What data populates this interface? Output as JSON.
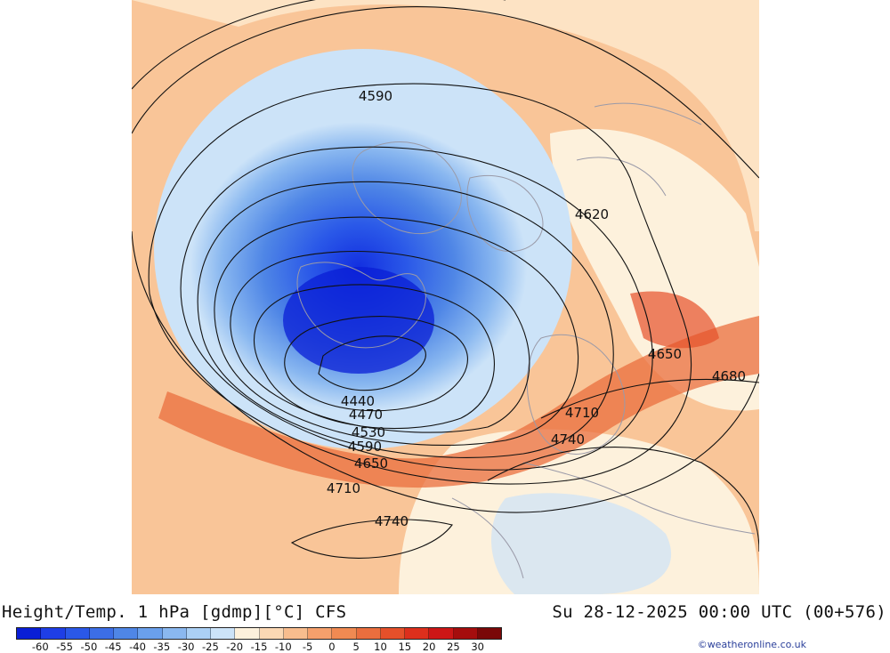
{
  "title": {
    "left": "Height/Temp. 1 hPa [gdmp][°C] CFS",
    "right": "Su 28-12-2025 00:00 UTC (00+576)"
  },
  "credit": "©weatheronline.co.uk",
  "legend": {
    "tick_labels": [
      "-60",
      "-55",
      "-50",
      "-45",
      "-40",
      "-35",
      "-30",
      "-25",
      "-20",
      "-15",
      "-10",
      "-5",
      "0",
      "5",
      "10",
      "15",
      "20",
      "25",
      "30"
    ],
    "swatch_colors": [
      "#0a1ed6",
      "#1e3ee6",
      "#2a58e8",
      "#3c6ee6",
      "#4f86e6",
      "#6aa0ec",
      "#8ab8f0",
      "#abd0f5",
      "#cce3f8",
      "#fdf1dc",
      "#fbd8b4",
      "#f8bd8e",
      "#f5a06c",
      "#f08a52",
      "#ea6e3e",
      "#e5502a",
      "#dd2f1c",
      "#cc1616",
      "#a50d0d",
      "#7a0808"
    ]
  },
  "contour_labels": [
    "4590",
    "4620",
    "4650",
    "4680",
    "4440",
    "4470",
    "4530",
    "4590",
    "4650",
    "4710",
    "4710",
    "4740",
    "4740"
  ]
}
